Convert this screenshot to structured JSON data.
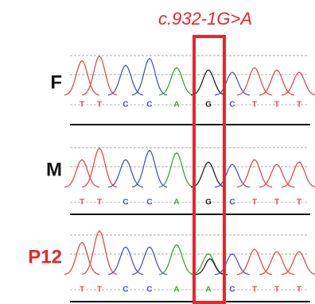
{
  "annotation": "c.932-1G>A",
  "rows": [
    {
      "label": "F",
      "bases": [
        "T",
        "T",
        "C",
        "C",
        "A",
        "G",
        "C",
        "T",
        "T",
        "T"
      ]
    },
    {
      "label": "M",
      "bases": [
        "T",
        "T",
        "C",
        "C",
        "A",
        "G",
        "C",
        "T",
        "T",
        "T"
      ]
    },
    {
      "label": "P12",
      "bases": [
        "T",
        "T",
        "C",
        "C",
        "A",
        "A",
        "C",
        "T",
        "T",
        "T"
      ]
    }
  ]
}
